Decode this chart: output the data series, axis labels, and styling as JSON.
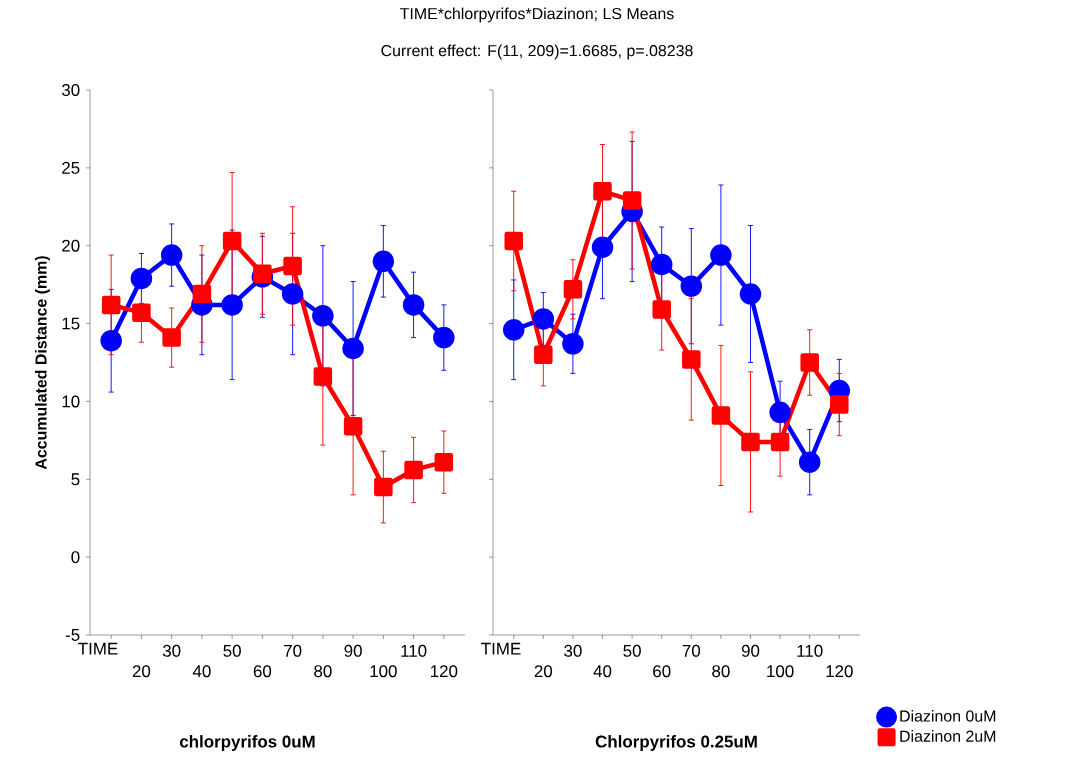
{
  "chart_data": [
    {
      "type": "line",
      "title": "TIME*chlorpyrifos*Diazinon; LS Means",
      "subtitle": "Current effect: F(11, 209)=1.6685, p=.08238",
      "xlabel": "TIME",
      "ylabel": "Accumulated Distance (mm)",
      "annotations": [
        "chlorpyrifos 0uM"
      ],
      "categories": [
        null,
        "20",
        "30",
        "40",
        "50",
        "60",
        "70",
        "80",
        "90",
        "100",
        "110",
        "120"
      ],
      "ylim": [
        -5,
        30
      ],
      "yticks": [
        -5,
        0,
        5,
        10,
        15,
        20,
        25,
        30
      ],
      "series": [
        {
          "color": "#0000ff",
          "marker": "circle",
          "values": [
            13.9,
            17.9,
            19.4,
            16.2,
            16.2,
            18.0,
            16.9,
            15.5,
            13.4,
            19.0,
            16.2,
            14.1
          ],
          "errors": [
            3.3,
            1.6,
            2.0,
            3.2,
            4.8,
            2.6,
            3.9,
            4.5,
            4.3,
            2.3,
            2.1,
            2.1
          ]
        },
        {
          "color": "#ff0000",
          "marker": "square",
          "values": [
            16.2,
            15.7,
            14.1,
            16.9,
            20.3,
            18.2,
            18.7,
            11.6,
            8.4,
            4.5,
            5.6,
            6.1
          ],
          "errors": [
            3.2,
            1.9,
            1.9,
            3.1,
            4.4,
            2.6,
            3.8,
            4.4,
            4.4,
            2.3,
            2.1,
            2.0
          ]
        }
      ]
    },
    {
      "type": "line",
      "xlabel": "TIME",
      "annotations": [
        "Chlorpyrifos 0.25uM"
      ],
      "legend": "bottom right",
      "tick_labels": "x",
      "categories": [
        null,
        "20",
        "30",
        "40",
        "50",
        "60",
        "70",
        "80",
        "90",
        "100",
        "110",
        "120"
      ],
      "ylim": [
        -5,
        30
      ],
      "yticks": [
        -5,
        0,
        5,
        10,
        15,
        20,
        25,
        30
      ],
      "series": [
        {
          "name": "Diazinon 0uM",
          "color": "#0000ff",
          "marker": "circle",
          "values": [
            14.6,
            15.3,
            13.7,
            19.9,
            22.2,
            18.8,
            17.4,
            19.4,
            16.9,
            9.3,
            6.1,
            10.7
          ],
          "errors": [
            3.2,
            1.7,
            1.9,
            3.3,
            4.5,
            2.4,
            3.7,
            4.5,
            4.4,
            2.0,
            2.1,
            2.0
          ]
        },
        {
          "name": "Diazinon 2uM",
          "color": "#ff0000",
          "marker": "square",
          "values": [
            20.3,
            13.0,
            17.2,
            23.5,
            22.9,
            15.9,
            12.7,
            9.1,
            7.4,
            7.4,
            12.5,
            9.8
          ],
          "errors": [
            3.2,
            2.0,
            1.9,
            3.0,
            4.4,
            2.6,
            3.9,
            4.5,
            4.5,
            2.2,
            2.1,
            2.0
          ]
        }
      ]
    }
  ]
}
